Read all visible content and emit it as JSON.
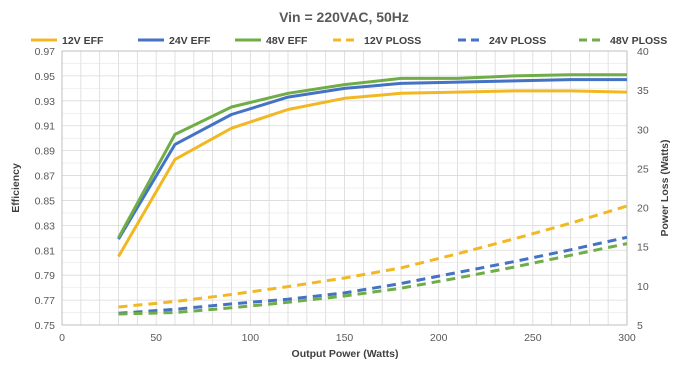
{
  "chart_data": {
    "type": "line",
    "title": "Vin = 220VAC, 50Hz",
    "xlabel": "Output Power (Watts)",
    "ylabel_left": "Efficiency",
    "ylabel_right": "Power Loss (Watts)",
    "xlim": [
      0,
      300
    ],
    "ylim_left": [
      0.75,
      0.97
    ],
    "ylim_right": [
      5,
      40
    ],
    "x_ticks": [
      0,
      50,
      100,
      150,
      200,
      250,
      300
    ],
    "y_left_ticks": [
      "0.75",
      "0.77",
      "0.79",
      "0.81",
      "0.83",
      "0.85",
      "0.87",
      "0.89",
      "0.91",
      "0.93",
      "0.95",
      "0.97"
    ],
    "y_right_ticks": [
      5,
      10,
      15,
      20,
      25,
      30,
      35,
      40
    ],
    "grid": true,
    "legend_position": "top",
    "series": [
      {
        "name": "12V EFF",
        "axis": "left",
        "style": "solid",
        "color": "#F2B824",
        "x": [
          30,
          60,
          90,
          120,
          150,
          180,
          210,
          240,
          270,
          300
        ],
        "y": [
          0.805,
          0.883,
          0.908,
          0.923,
          0.932,
          0.936,
          0.937,
          0.938,
          0.938,
          0.937
        ]
      },
      {
        "name": "24V EFF",
        "axis": "left",
        "style": "solid",
        "color": "#4472C4",
        "x": [
          30,
          60,
          90,
          120,
          150,
          180,
          210,
          240,
          270,
          300
        ],
        "y": [
          0.819,
          0.895,
          0.919,
          0.933,
          0.94,
          0.944,
          0.945,
          0.946,
          0.947,
          0.947
        ]
      },
      {
        "name": "48V EFF",
        "axis": "left",
        "style": "solid",
        "color": "#70AD47",
        "x": [
          30,
          60,
          90,
          120,
          150,
          180,
          210,
          240,
          270,
          300
        ],
        "y": [
          0.82,
          0.903,
          0.925,
          0.936,
          0.943,
          0.948,
          0.948,
          0.95,
          0.951,
          0.951
        ]
      },
      {
        "name": "12V PLOSS",
        "axis": "right",
        "style": "dashed",
        "color": "#F2B824",
        "x": [
          30,
          60,
          90,
          120,
          150,
          180,
          210,
          240,
          270,
          300
        ],
        "y": [
          7.3,
          8.0,
          8.9,
          9.9,
          11.0,
          12.3,
          14.1,
          16.0,
          18.0,
          20.2
        ]
      },
      {
        "name": "24V PLOSS",
        "axis": "right",
        "style": "dashed",
        "color": "#4472C4",
        "x": [
          30,
          60,
          90,
          120,
          150,
          180,
          210,
          240,
          270,
          300
        ],
        "y": [
          6.5,
          7.0,
          7.7,
          8.3,
          9.1,
          10.3,
          11.7,
          13.1,
          14.6,
          16.2
        ]
      },
      {
        "name": "48V PLOSS",
        "axis": "right",
        "style": "dashed",
        "color": "#70AD47",
        "x": [
          30,
          60,
          90,
          120,
          150,
          180,
          210,
          240,
          270,
          300
        ],
        "y": [
          6.4,
          6.6,
          7.2,
          7.9,
          8.7,
          9.7,
          11.0,
          12.4,
          13.9,
          15.4
        ]
      }
    ]
  }
}
